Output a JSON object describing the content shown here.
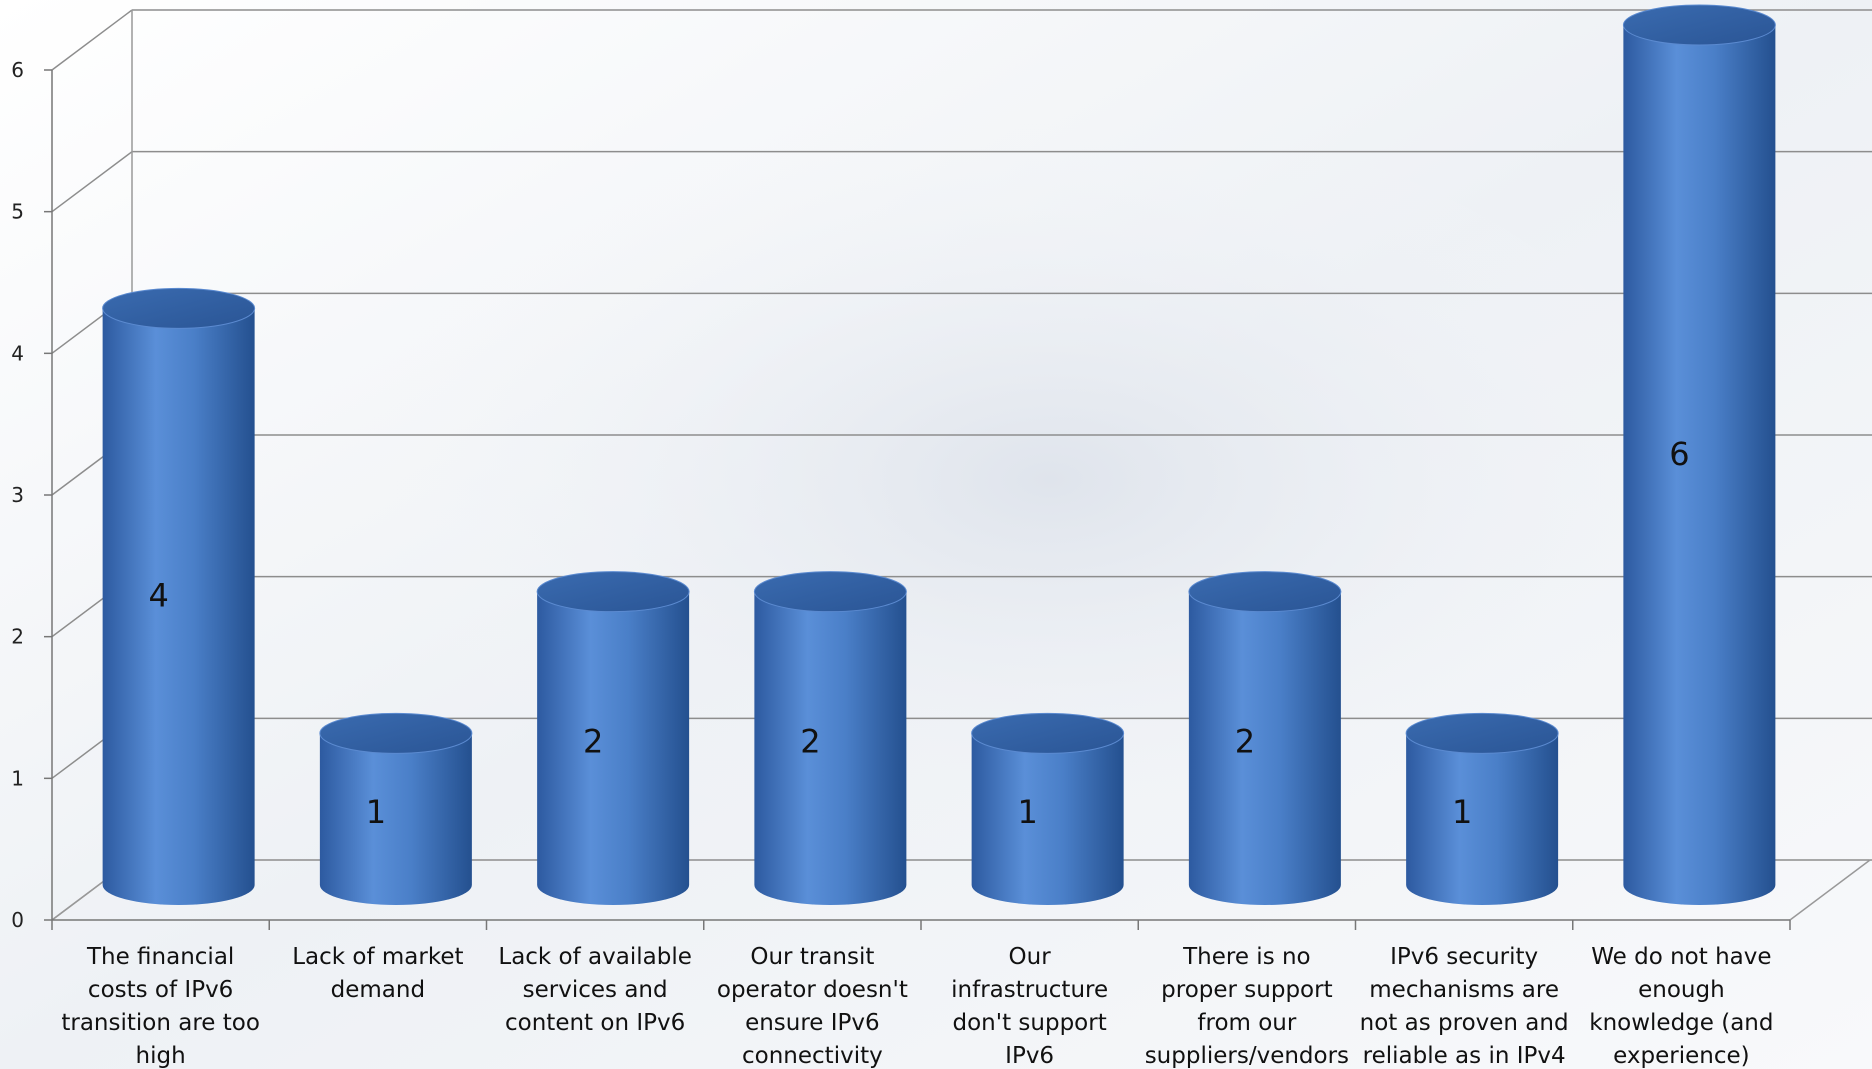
{
  "chart_data": {
    "type": "bar",
    "style": "3d-cylinder",
    "title": "",
    "xlabel": "",
    "ylabel": "",
    "ylim": [
      0,
      6
    ],
    "yticks": [
      0,
      1,
      2,
      3,
      4,
      5,
      6
    ],
    "grid": true,
    "legend": "none",
    "bar_color": "#4a7fc8",
    "categories": [
      "The financial costs of IPv6 transition  are too high",
      "Lack of market demand",
      "Lack of available services and content on IPv6",
      "Our transit operator doesn't ensure IPv6 connectivity",
      "Our infrastructure don't support IPv6",
      "There is no proper support from our suppliers/vendors",
      "IPv6 security mechanisms are not as proven and reliable as in IPv4",
      "We do not have enough knowledge (and experience)"
    ],
    "category_lines": [
      [
        "The financial",
        "costs of IPv6",
        "transition  are too",
        "high"
      ],
      [
        "Lack of market",
        "demand"
      ],
      [
        "Lack of available",
        "services and",
        "content on IPv6"
      ],
      [
        "Our transit",
        "operator doesn't",
        "ensure IPv6",
        "connectivity"
      ],
      [
        "Our",
        "infrastructure",
        "don't support",
        "IPv6"
      ],
      [
        "There is no",
        "proper support",
        "from our",
        "suppliers/vendors"
      ],
      [
        "IPv6 security",
        "mechanisms are",
        "not as proven and",
        "reliable as in IPv4"
      ],
      [
        "We do not have",
        "enough",
        "knowledge (and",
        "experience)"
      ]
    ],
    "values": [
      4,
      1,
      2,
      2,
      1,
      2,
      1,
      6
    ],
    "data_labels": [
      "4",
      "1",
      "2",
      "2",
      "1",
      "2",
      "1",
      "6"
    ]
  }
}
